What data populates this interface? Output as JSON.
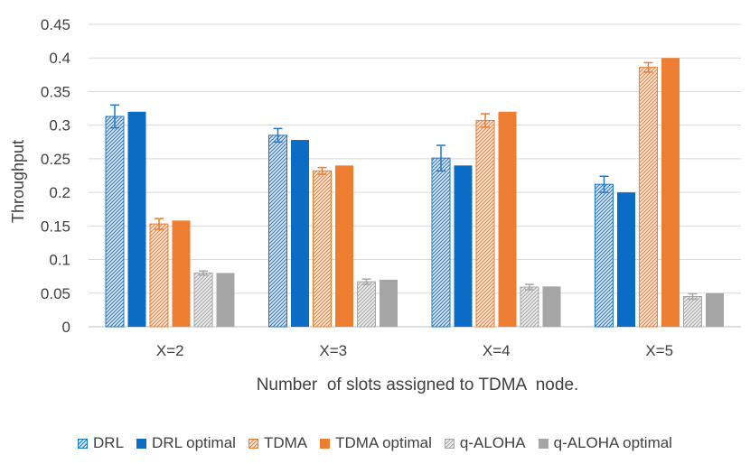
{
  "chart_data": {
    "type": "bar",
    "title": "",
    "xlabel": "Number  of slots assigned to TDMA  node.",
    "ylabel": "Throughput",
    "ylim": [
      0,
      0.45
    ],
    "yticks": [
      "0",
      "0.05",
      "0.1",
      "0.15",
      "0.2",
      "0.25",
      "0.3",
      "0.35",
      "0.4",
      "0.45"
    ],
    "grid": true,
    "legend_position": "bottom",
    "categories": [
      "X=2",
      "X=3",
      "X=4",
      "X=5"
    ],
    "series": [
      {
        "name": "DRL",
        "values": [
          0.313,
          0.285,
          0.251,
          0.212
        ],
        "errors": [
          0.017,
          0.01,
          0.019,
          0.012
        ],
        "color": "#1f77c9",
        "pattern": "hatch"
      },
      {
        "name": "DRL optimal",
        "values": [
          0.32,
          0.278,
          0.24,
          0.2
        ],
        "color": "#0a6cc4",
        "pattern": "solid"
      },
      {
        "name": "TDMA",
        "values": [
          0.153,
          0.232,
          0.307,
          0.386
        ],
        "errors": [
          0.008,
          0.005,
          0.01,
          0.007
        ],
        "color": "#ed7d31",
        "pattern": "hatch"
      },
      {
        "name": "TDMA optimal",
        "values": [
          0.158,
          0.24,
          0.32,
          0.4
        ],
        "color": "#ed7d31",
        "pattern": "solid"
      },
      {
        "name": "q-ALOHA",
        "values": [
          0.08,
          0.067,
          0.059,
          0.045
        ],
        "errors": [
          0.003,
          0.004,
          0.004,
          0.004
        ],
        "color": "#a6a6a6",
        "pattern": "hatch"
      },
      {
        "name": "q-ALOHA optimal",
        "values": [
          0.08,
          0.07,
          0.06,
          0.05
        ],
        "color": "#a5a5a5",
        "pattern": "solid"
      }
    ]
  }
}
